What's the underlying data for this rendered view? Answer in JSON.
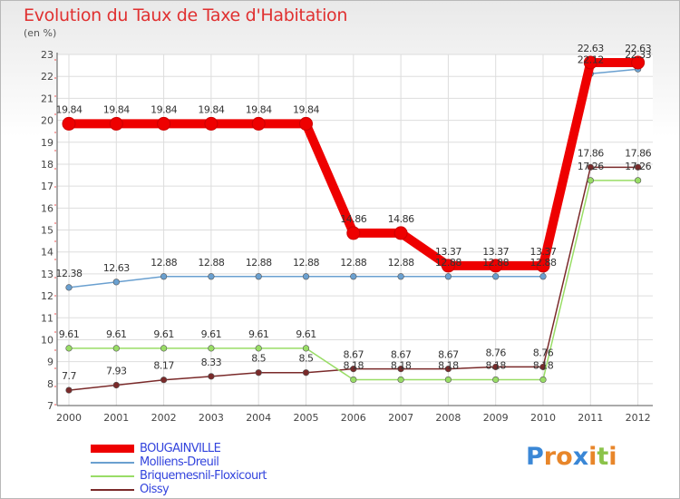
{
  "header": {
    "title": "Evolution du Taux de Taxe d'Habitation",
    "unit": "(en %)"
  },
  "logo": {
    "letters": [
      {
        "ch": "P",
        "color": "#3a87d6"
      },
      {
        "ch": "r",
        "color": "#e8862a"
      },
      {
        "ch": "o",
        "color": "#e8862a"
      },
      {
        "ch": "x",
        "color": "#3a87d6"
      },
      {
        "ch": "i",
        "color": "#e8862a"
      },
      {
        "ch": "t",
        "color": "#8bc34a"
      },
      {
        "ch": "i",
        "color": "#e8862a"
      }
    ]
  },
  "chart_data": {
    "type": "line",
    "x": [
      "2000",
      "2001",
      "2002",
      "2003",
      "2004",
      "2005",
      "2006",
      "2007",
      "2008",
      "2009",
      "2010",
      "2011",
      "2012"
    ],
    "ylim": [
      7,
      23
    ],
    "yticks": [
      "7",
      "8",
      "9",
      "10",
      "11",
      "12",
      "13",
      "14",
      "15",
      "16",
      "17",
      "18",
      "19",
      "20",
      "21",
      "22",
      "23"
    ],
    "grid": true,
    "legend_position": "bottom-left",
    "series": [
      {
        "name": "BOUGAINVILLE",
        "color": "#ee0000",
        "values": [
          19.84,
          19.84,
          19.84,
          19.84,
          19.84,
          19.84,
          14.86,
          14.86,
          13.37,
          13.37,
          13.37,
          22.63,
          22.63
        ],
        "labels": [
          "19.84",
          "19.84",
          "19.84",
          "19.84",
          "19.84",
          "19.84",
          "14.86",
          "14.86",
          "13.37",
          "13.37",
          "13.37",
          "22.63",
          "22.63"
        ]
      },
      {
        "name": "Molliens-Dreuil",
        "color": "#6aa0d0",
        "values": [
          12.38,
          12.63,
          12.88,
          12.88,
          12.88,
          12.88,
          12.88,
          12.88,
          12.88,
          12.88,
          12.88,
          22.12,
          22.33
        ],
        "labels": [
          "12.38",
          "12.63",
          "12.88",
          "12.88",
          "12.88",
          "12.88",
          "12.88",
          "12.88",
          "12.88",
          "12.88",
          "12.88",
          "22.12",
          "22.33"
        ]
      },
      {
        "name": "Briquemesnil-Floxicourt",
        "color": "#99dd66",
        "values": [
          9.61,
          9.61,
          9.61,
          9.61,
          9.61,
          9.61,
          8.18,
          8.18,
          8.18,
          8.18,
          8.18,
          17.26,
          17.26
        ],
        "labels": [
          "9.61",
          "9.61",
          "9.61",
          "9.61",
          "9.61",
          "9.61",
          "8.18",
          "8.18",
          "8.18",
          "8.18",
          "8.18",
          "17.26",
          "17.26"
        ]
      },
      {
        "name": "Oissy",
        "color": "#7a2a2a",
        "values": [
          7.7,
          7.93,
          8.17,
          8.33,
          8.5,
          8.5,
          8.67,
          8.67,
          8.67,
          8.76,
          8.76,
          17.86,
          17.86
        ],
        "labels": [
          "7.7",
          "7.93",
          "8.17",
          "8.33",
          "8.5",
          "8.5",
          "8.67",
          "8.67",
          "8.67",
          "8.76",
          "8.76",
          "17.86",
          "17.86"
        ]
      }
    ]
  }
}
